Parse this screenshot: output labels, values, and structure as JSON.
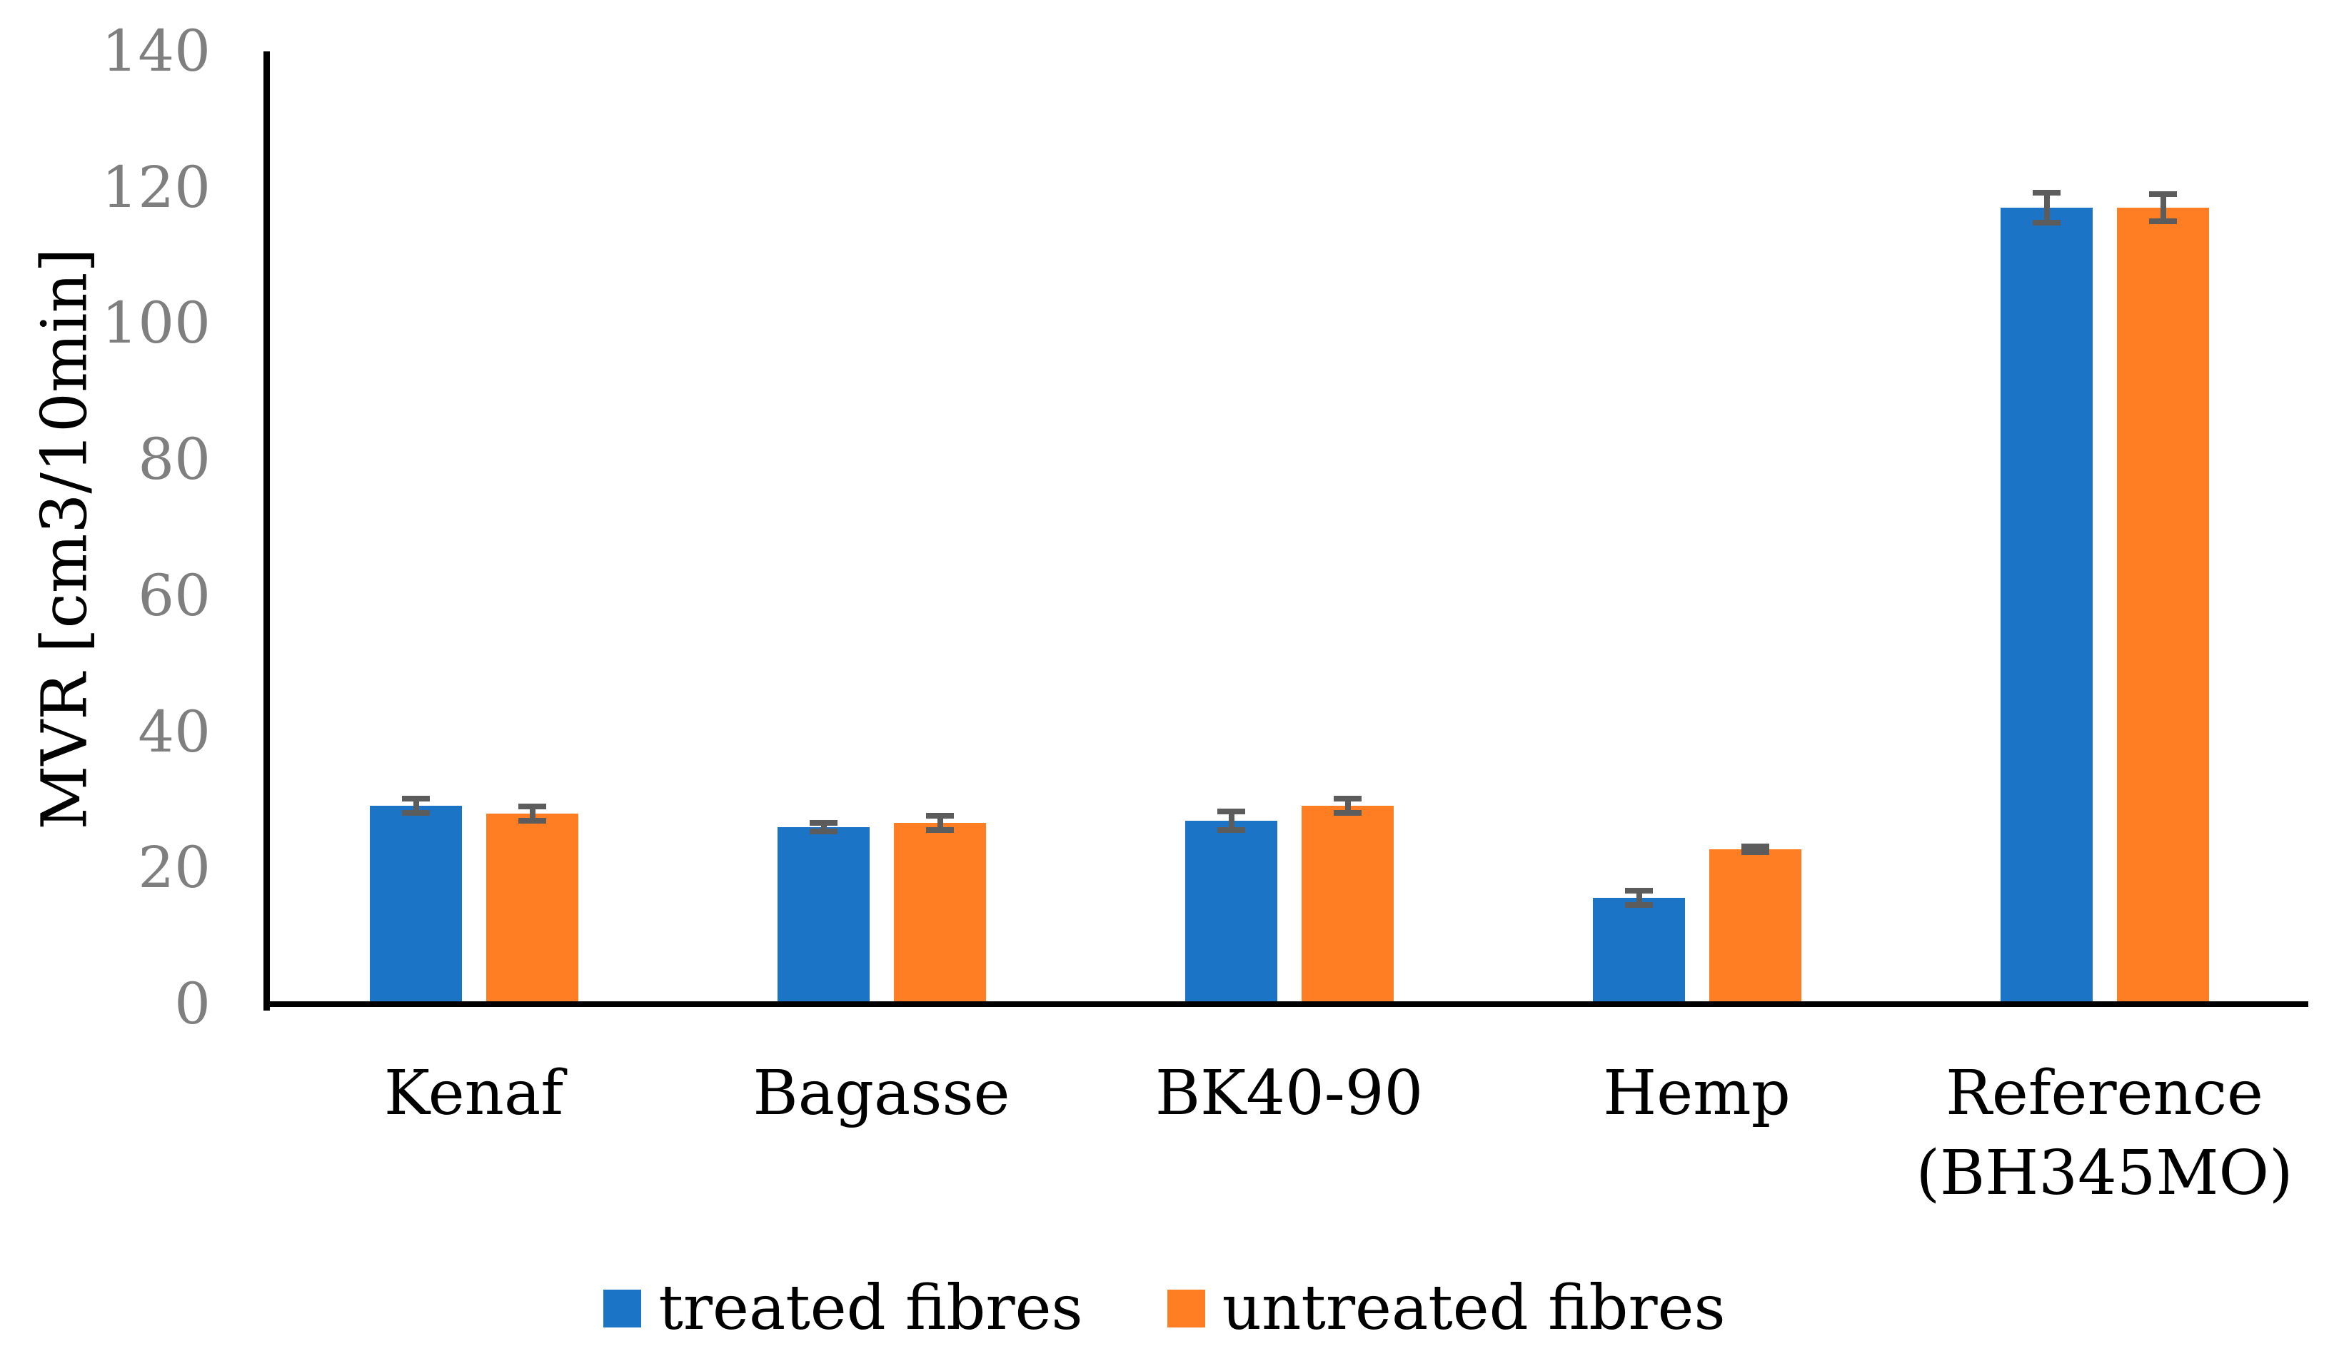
{
  "chart_data": {
    "type": "bar",
    "title": "",
    "xlabel": "",
    "ylabel": "MVR [cm3/10min]",
    "ylim": [
      0,
      140
    ],
    "yticks": [
      0,
      20,
      40,
      60,
      80,
      100,
      120,
      140
    ],
    "grid": false,
    "legend_position": "bottom",
    "categories": [
      "Kenaf",
      "Bagasse",
      "BK40-90",
      "Hemp",
      "Reference\n(BH345MO)"
    ],
    "series": [
      {
        "name": "treated fibres",
        "color": "#1b74c6",
        "values": [
          29.2,
          26.0,
          27.0,
          15.6,
          117.0
        ],
        "errors": [
          1.0,
          0.6,
          1.4,
          1.1,
          2.2
        ]
      },
      {
        "name": "untreated fibres",
        "color": "#ff7d23",
        "values": [
          28.0,
          26.6,
          29.2,
          22.8,
          117.0
        ],
        "errors": [
          1.0,
          1.1,
          1.0,
          0.4,
          2.0
        ]
      }
    ],
    "colors": {
      "axis": "#000000",
      "tick_label": "#7f7f7f",
      "error_bar": "#5c5c5c",
      "background": "#ffffff"
    }
  }
}
